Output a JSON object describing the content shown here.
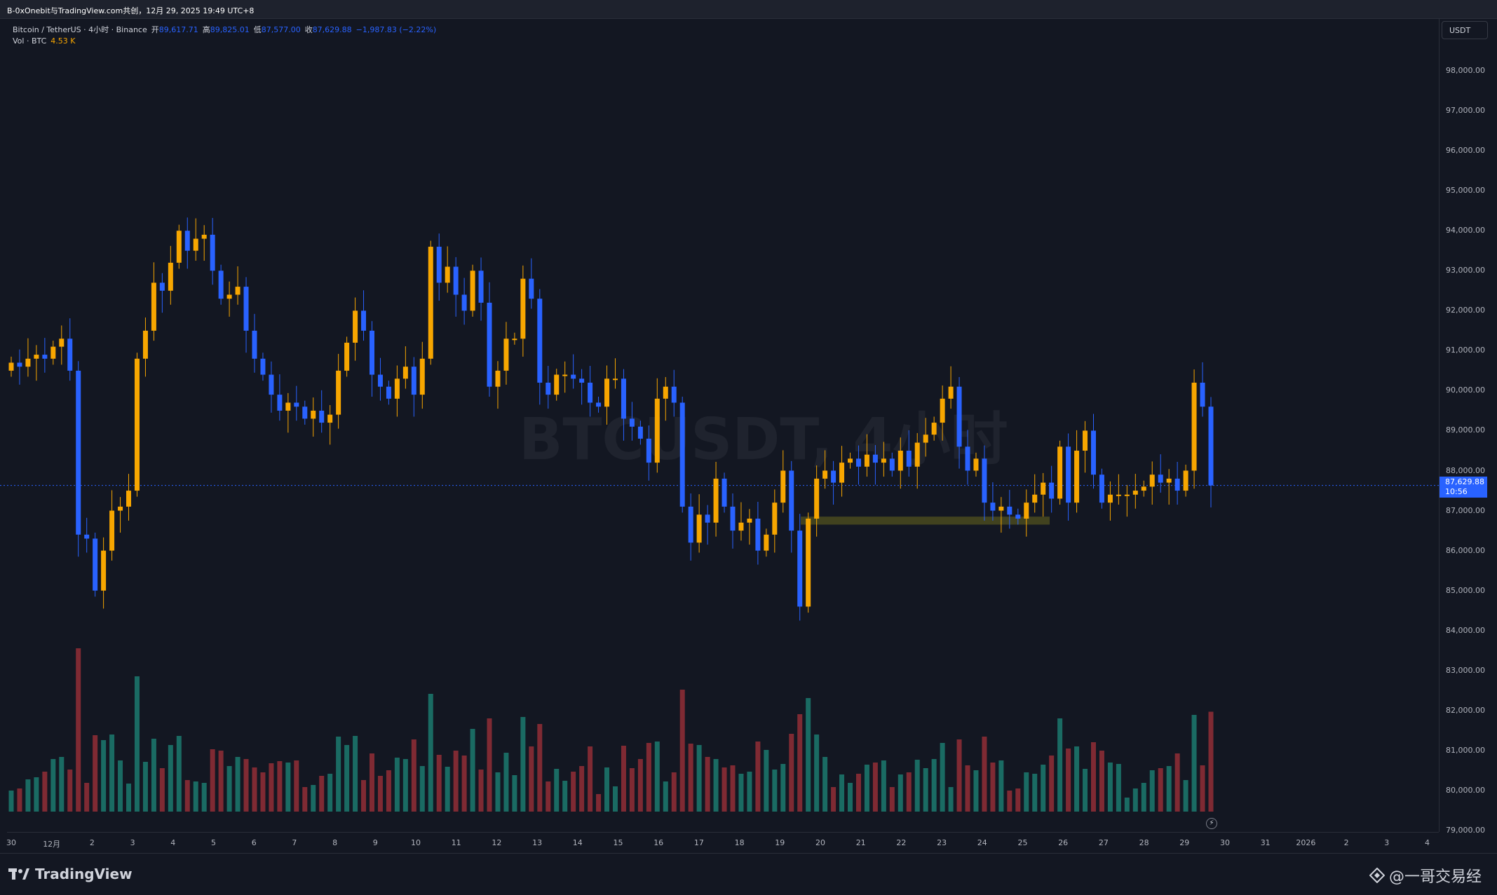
{
  "topbar": {
    "title": "B-0xOnebit与TradingView.com共创，12月 29, 2025 19:49 UTC+8"
  },
  "legend": {
    "symbol": "Bitcoin / TetherUS · 4小时 · Binance",
    "open_label": "开",
    "open_value": "89,617.71",
    "high_label": "高",
    "high_value": "89,825.01",
    "low_label": "低",
    "low_value": "87,577.00",
    "close_label": "收",
    "close_value": "87,629.88",
    "change_value": "−1,987.83 (−2.22%)",
    "vol_label": "Vol · BTC",
    "vol_value": "4.53 K"
  },
  "watermark": "BTCUSDT, 4小时",
  "price_axis": {
    "currency": "USDT",
    "labels": [
      "98,000.00",
      "97,000.00",
      "96,000.00",
      "95,000.00",
      "94,000.00",
      "93,000.00",
      "92,000.00",
      "91,000.00",
      "90,000.00",
      "89,000.00",
      "88,000.00",
      "87,000.00",
      "86,000.00",
      "85,000.00",
      "84,000.00",
      "83,000.00",
      "82,000.00",
      "81,000.00",
      "80,000.00",
      "79,000.00"
    ],
    "current_price": "87,629.88",
    "countdown": "10:56"
  },
  "time_axis": {
    "labels": [
      "30",
      "12月",
      "2",
      "3",
      "4",
      "5",
      "6",
      "7",
      "8",
      "9",
      "10",
      "11",
      "12",
      "13",
      "14",
      "15",
      "16",
      "17",
      "18",
      "19",
      "20",
      "21",
      "22",
      "23",
      "24",
      "25",
      "26",
      "27",
      "28",
      "29",
      "30",
      "31",
      "2026",
      "2",
      "3",
      "4"
    ]
  },
  "colors": {
    "up": "#f7a600",
    "down": "#2962ff",
    "vol_up": "#1a6b63",
    "vol_down": "#7f2a33",
    "zone": "#4a4a1e"
  },
  "footer": {
    "brand": "TradingView",
    "author": "@一哥交易经"
  },
  "icons": {
    "logo": "tradingview-logo-icon",
    "bolt": "lightning-icon",
    "author": "binance-diamond-icon"
  }
}
